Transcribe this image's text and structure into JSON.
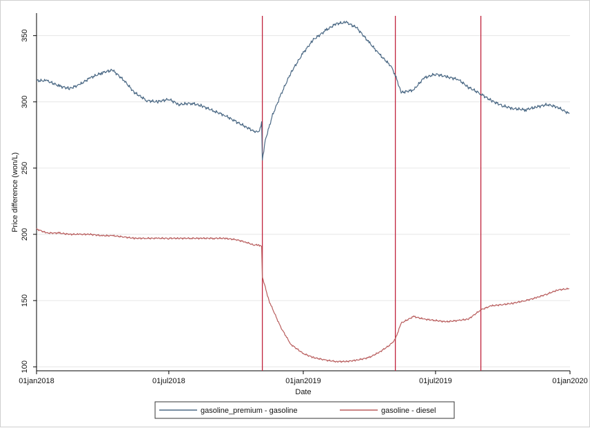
{
  "chart_data": {
    "type": "line",
    "xlabel": "Date",
    "ylabel": "Price difference (won/L)",
    "x_ticks": [
      "01jan2018",
      "01jul2018",
      "01jan2019",
      "01jul2019",
      "01jan2020"
    ],
    "x_tick_dates": [
      "2018-01-01",
      "2018-07-01",
      "2019-01-01",
      "2019-07-01",
      "2020-01-01"
    ],
    "xlim": [
      "2018-01-01",
      "2020-01-01"
    ],
    "y_ticks": [
      100,
      150,
      200,
      250,
      300,
      350
    ],
    "ylim": [
      97,
      367
    ],
    "grid": true,
    "legend_position": "bottom",
    "vertical_lines": [
      "2018-11-06",
      "2019-05-07",
      "2019-09-01"
    ],
    "vertical_line_color": "#c0223b",
    "series": [
      {
        "name": "gasoline_premium - gasoline",
        "color": "#4a6884",
        "x": [
          "2018-01-01",
          "2018-01-15",
          "2018-02-01",
          "2018-02-15",
          "2018-03-01",
          "2018-03-15",
          "2018-04-01",
          "2018-04-15",
          "2018-05-01",
          "2018-05-15",
          "2018-06-01",
          "2018-06-15",
          "2018-07-01",
          "2018-07-15",
          "2018-08-01",
          "2018-08-15",
          "2018-09-01",
          "2018-09-15",
          "2018-10-01",
          "2018-10-15",
          "2018-10-25",
          "2018-11-01",
          "2018-11-05",
          "2018-11-06",
          "2018-11-10",
          "2018-11-20",
          "2018-12-01",
          "2018-12-15",
          "2019-01-01",
          "2019-01-15",
          "2019-02-01",
          "2019-02-15",
          "2019-03-01",
          "2019-03-15",
          "2019-04-01",
          "2019-04-15",
          "2019-05-01",
          "2019-05-07",
          "2019-05-15",
          "2019-06-01",
          "2019-06-15",
          "2019-07-01",
          "2019-07-15",
          "2019-08-01",
          "2019-08-15",
          "2019-09-01",
          "2019-09-15",
          "2019-10-01",
          "2019-10-15",
          "2019-11-01",
          "2019-11-15",
          "2019-12-01",
          "2019-12-15",
          "2019-12-31"
        ],
        "values": [
          316,
          316,
          312,
          310,
          313,
          318,
          322,
          324,
          316,
          307,
          301,
          300,
          302,
          298,
          299,
          297,
          293,
          290,
          285,
          281,
          278,
          277,
          284,
          256,
          271,
          290,
          305,
          322,
          337,
          347,
          354,
          359,
          360,
          356,
          345,
          336,
          327,
          320,
          307,
          309,
          318,
          321,
          319,
          317,
          311,
          306,
          301,
          297,
          295,
          294,
          296,
          298,
          296,
          291
        ]
      },
      {
        "name": "gasoline - diesel",
        "color": "#b85c5c",
        "x": [
          "2018-01-01",
          "2018-01-15",
          "2018-02-01",
          "2018-02-15",
          "2018-03-01",
          "2018-03-15",
          "2018-04-01",
          "2018-04-15",
          "2018-05-01",
          "2018-05-15",
          "2018-06-01",
          "2018-06-15",
          "2018-07-01",
          "2018-07-15",
          "2018-08-01",
          "2018-08-15",
          "2018-09-01",
          "2018-09-15",
          "2018-10-01",
          "2018-10-15",
          "2018-10-25",
          "2018-11-01",
          "2018-11-05",
          "2018-11-06",
          "2018-11-15",
          "2018-12-01",
          "2018-12-15",
          "2019-01-01",
          "2019-01-15",
          "2019-02-01",
          "2019-02-15",
          "2019-03-01",
          "2019-03-15",
          "2019-04-01",
          "2019-04-15",
          "2019-05-01",
          "2019-05-07",
          "2019-05-15",
          "2019-06-01",
          "2019-06-15",
          "2019-07-01",
          "2019-07-15",
          "2019-08-01",
          "2019-08-15",
          "2019-09-01",
          "2019-09-15",
          "2019-10-01",
          "2019-10-15",
          "2019-11-01",
          "2019-11-15",
          "2019-12-01",
          "2019-12-15",
          "2019-12-31"
        ],
        "values": [
          204,
          201,
          201,
          200,
          200,
          200,
          199,
          199,
          198,
          197,
          197,
          197,
          197,
          197,
          197,
          197,
          197,
          197,
          196,
          194,
          192,
          192,
          191,
          168,
          150,
          130,
          117,
          110,
          107,
          105,
          104,
          104,
          105,
          107,
          111,
          117,
          121,
          133,
          138,
          136,
          135,
          134,
          135,
          136,
          143,
          146,
          147,
          148,
          150,
          152,
          155,
          158,
          159
        ]
      }
    ]
  }
}
